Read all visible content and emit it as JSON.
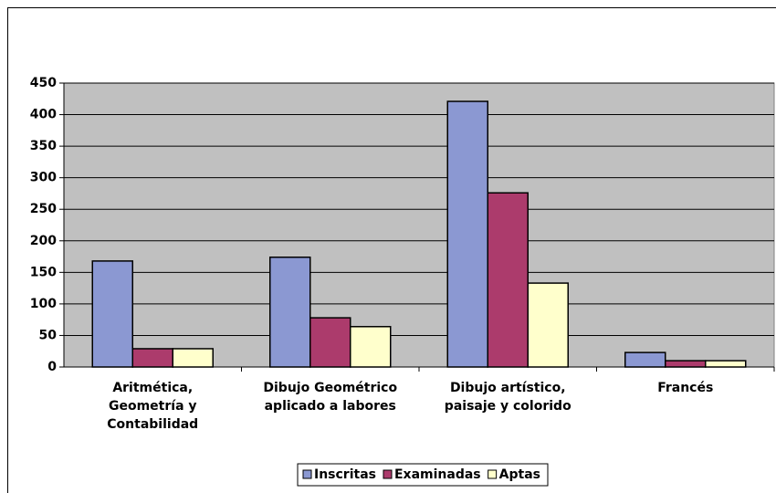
{
  "chart_data": {
    "type": "bar",
    "categories": [
      "Aritmética, Geometría y Contabilidad",
      "Dibujo Geométrico aplicado a labores",
      "Dibujo artístico, paisaje y colorido",
      "Francés"
    ],
    "series": [
      {
        "name": "Inscritas",
        "color": "#8b98d2",
        "values": [
          168,
          174,
          421,
          23
        ]
      },
      {
        "name": "Examinadas",
        "color": "#ac3b6c",
        "values": [
          29,
          78,
          276,
          10
        ]
      },
      {
        "name": "Aptas",
        "color": "#ffffcc",
        "values": [
          29,
          64,
          133,
          10
        ]
      }
    ],
    "ylim": [
      0,
      450
    ],
    "yticks": [
      0,
      50,
      100,
      150,
      200,
      250,
      300,
      350,
      400,
      450
    ],
    "grid": true,
    "legend": "bottom"
  }
}
